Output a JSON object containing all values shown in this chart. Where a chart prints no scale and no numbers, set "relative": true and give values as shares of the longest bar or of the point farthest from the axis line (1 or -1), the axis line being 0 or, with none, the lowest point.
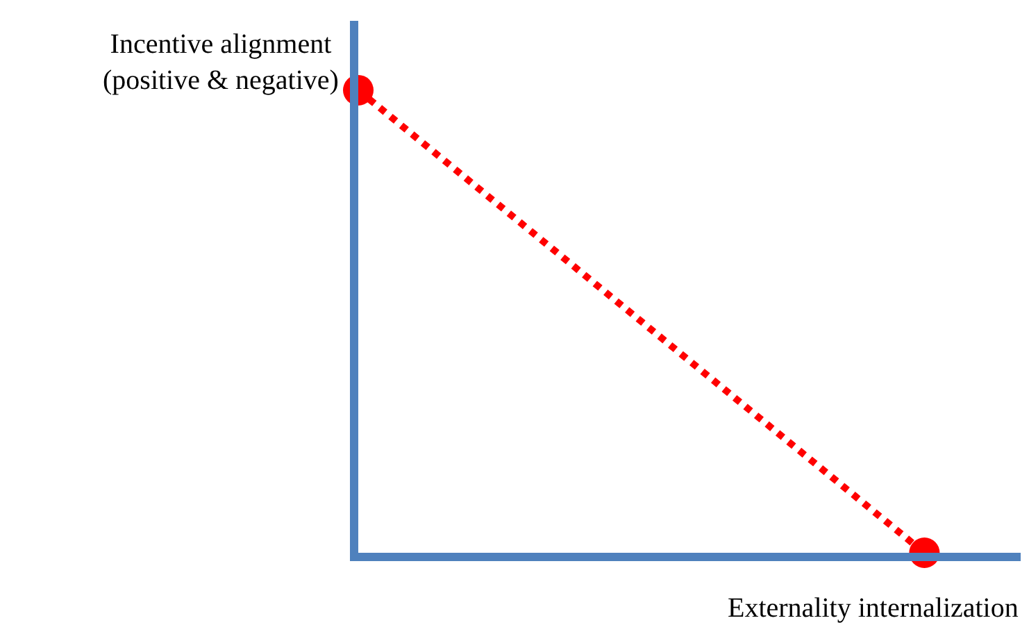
{
  "chart_data": {
    "type": "line",
    "relative": true,
    "categories": [
      null,
      null
    ],
    "xlabel": "Externality internalization",
    "ylabel": "Incentive alignment\n(positive & negative)",
    "series": [
      {
        "color": "#ff0000",
        "values": [
          1,
          0
        ]
      }
    ],
    "marker": "circle",
    "line_style": "dotted",
    "legend": false
  }
}
